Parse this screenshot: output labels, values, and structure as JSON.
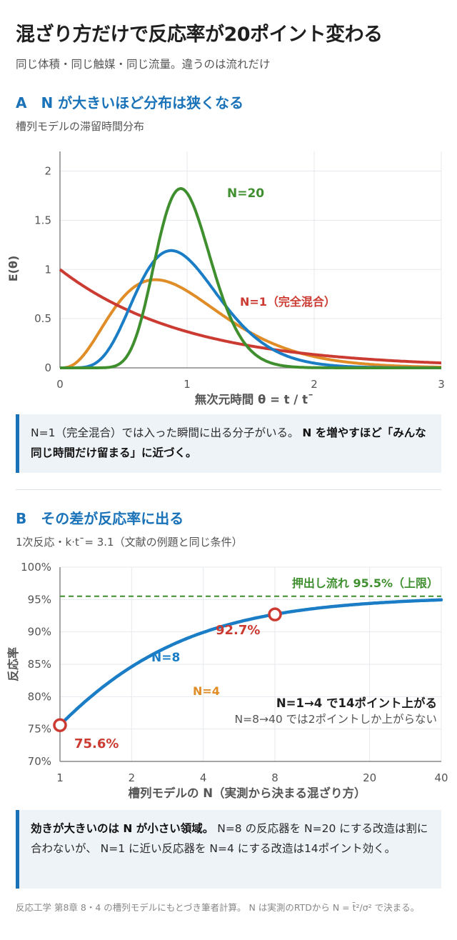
{
  "header": {
    "title": "混ざり方だけで反応率が20ポイント変わる",
    "subtitle": "同じ体積・同じ触媒・同じ流量。違うのは流れだけ"
  },
  "section_a": {
    "title": "A　N が大きいほど分布は狭くなる",
    "subtitle": "槽列モデルの滞留時間分布",
    "note_plain1": "N=1（完全混合）では入った瞬間に出る分子がいる。",
    "note_bold": "N を増やすほど「みんな同じ時間だけ留まる」に近づく。"
  },
  "section_b": {
    "title": "B　その差が反応率に出る",
    "subtitle": "1次反応・k·t¯= 3.1（文献の例題と同じ条件）",
    "note_bold": "効きが大きいのは N が小さい領域。",
    "note_plain": "N=8 の反応器を N=20 にする改造は割に合わないが、 N=1 に近い反応器を N=4 にする改造は14ポイント効く。"
  },
  "footer": {
    "text": "反応工学 第8章 8・4 の槽列モデルにもとづき筆者計算。 N は実測のRTDから N = t̄²/σ² で決まる。"
  },
  "chart_data": [
    {
      "type": "line",
      "xlabel": "無次元時間  θ = t / t¯",
      "ylabel": "E(θ)",
      "xlim": [
        0,
        3
      ],
      "ylim": [
        0,
        2.2
      ],
      "x_ticks": [
        "0",
        "1",
        "2",
        "3"
      ],
      "y_ticks": [
        "0",
        "0.5",
        "1",
        "1.5",
        "2"
      ],
      "grid": true,
      "series": [
        {
          "name": "N=1（完全混合）",
          "N": 1,
          "color": "#cc3b32",
          "label": "N=1（完全混合）",
          "peak": 1.0
        },
        {
          "name": "",
          "N": 4,
          "color": "#e08c27",
          "peak": 0.9
        },
        {
          "name": "",
          "N": 8,
          "color": "#1a7dc6",
          "peak": 1.2
        },
        {
          "name": "N=20",
          "N": 20,
          "color": "#3f8f2f",
          "label": "N=20",
          "peak": 1.82
        }
      ]
    },
    {
      "type": "line",
      "xlabel": "槽列モデルの N（実測から決まる混ざり方）",
      "ylabel": "反応率",
      "x_scale": "log",
      "x_ticks": [
        "1",
        "2",
        "4",
        "8",
        "20",
        "40"
      ],
      "y_ticks": [
        "70%",
        "75%",
        "80%",
        "85%",
        "90%",
        "95%",
        "100%"
      ],
      "ylim": [
        70,
        100
      ],
      "grid": true,
      "k_tau": 3.1,
      "series": [
        {
          "name": "N=8",
          "color": "#1a7dc6",
          "x": [
            1,
            2,
            4,
            8,
            20,
            40
          ],
          "y": [
            75.6,
            86.0,
            90.6,
            92.7,
            94.2,
            94.9
          ]
        }
      ],
      "reference_line": {
        "label": "押出し流れ 95.5%（上限）",
        "value": 95.5,
        "color": "#3f8f2f"
      },
      "points": [
        {
          "x": 1,
          "y": 75.6,
          "label": "75.6%"
        },
        {
          "x": 8,
          "y": 92.7,
          "label": "92.7%"
        }
      ],
      "annotations": {
        "n4_label": "N=4",
        "main": "N=1→4 で14ポイント上がる",
        "sub": "N=8→40 では2ポイントしか上がらない"
      }
    }
  ]
}
